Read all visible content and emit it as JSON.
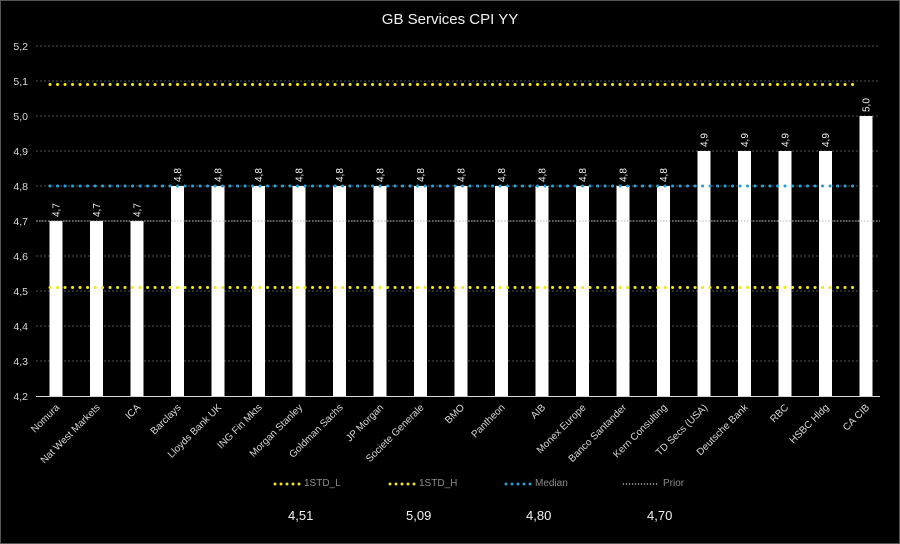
{
  "chart_data": {
    "type": "bar",
    "title": "GB Services CPI YY",
    "xlabel": "",
    "ylabel": "",
    "ylim": [
      4.2,
      5.2
    ],
    "yticks": [
      "4,2",
      "4,3",
      "4,4",
      "4,5",
      "4,6",
      "4,7",
      "4,8",
      "4,9",
      "5,0",
      "5,1",
      "5,2"
    ],
    "ytick_values": [
      4.2,
      4.3,
      4.4,
      4.5,
      4.6,
      4.7,
      4.8,
      4.9,
      5.0,
      5.1,
      5.2
    ],
    "grid": true,
    "categories": [
      "Nomura",
      "Nat West Markets",
      "ICA",
      "Barclays",
      "Lloyds Bank UK",
      "ING Fin Mkts",
      "Morgan Stanley",
      "Goldman Sachs",
      "JP Morgan",
      "Societe Generale",
      "BMO",
      "Pantheon",
      "AIB",
      "Monex Europe",
      "Banco Santander",
      "Kern Consulting",
      "TD Secs (USA)",
      "Deutsche Bank",
      "RBC",
      "HSBC Hldg",
      "CA CIB"
    ],
    "values": [
      4.7,
      4.7,
      4.7,
      4.8,
      4.8,
      4.8,
      4.8,
      4.8,
      4.8,
      4.8,
      4.8,
      4.8,
      4.8,
      4.8,
      4.8,
      4.8,
      4.9,
      4.9,
      4.9,
      4.9,
      5.0
    ],
    "data_labels": [
      "4,7",
      "4,7",
      "4,7",
      "4,8",
      "4,8",
      "4,8",
      "4,8",
      "4,8",
      "4,8",
      "4,8",
      "4,8",
      "4,8",
      "4,8",
      "4,8",
      "4,8",
      "4,8",
      "4,9",
      "4,9",
      "4,9",
      "4,9",
      "5,0"
    ],
    "bar_color": "#ffffff",
    "reference_lines": [
      {
        "name": "1STD_L",
        "value": 4.51,
        "label": "4,51",
        "color": "#f2e617",
        "style": "dots"
      },
      {
        "name": "1STD_H",
        "value": 5.09,
        "label": "5,09",
        "color": "#f2e617",
        "style": "dots"
      },
      {
        "name": "Median",
        "value": 4.8,
        "label": "4,80",
        "color": "#2a9fd6",
        "style": "dots"
      },
      {
        "name": "Prior",
        "value": 4.7,
        "label": "4,70",
        "color": "#bbbbbb",
        "style": "fine-dots"
      }
    ],
    "legend_position": "bottom"
  }
}
